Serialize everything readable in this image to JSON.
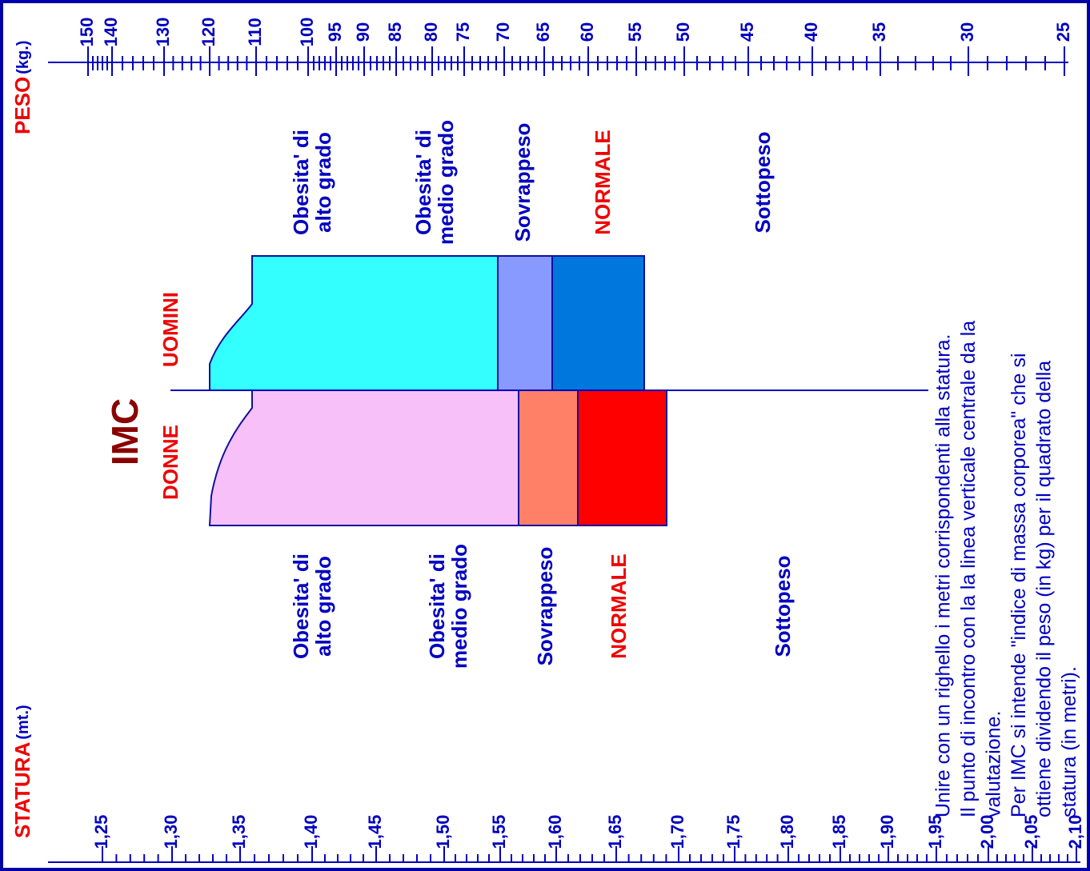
{
  "height_scale": {
    "title": "STATURA",
    "unit": "(mt.)",
    "ticks": [
      "1,25",
      "1,30",
      "1,35",
      "1,40",
      "1,45",
      "1,50",
      "1,55",
      "1,60",
      "1,65",
      "1,70",
      "1,75",
      "1,80",
      "1,85",
      "1,90",
      "1,95",
      "2,00",
      "2,05",
      "2,10"
    ]
  },
  "weight_scale": {
    "title": "PESO",
    "unit": "(kg.)",
    "ticks": [
      "150",
      "140",
      "130",
      "120",
      "110",
      "100",
      "95",
      "90",
      "85",
      "80",
      "75",
      "70",
      "65",
      "60",
      "55",
      "50",
      "45",
      "40",
      "35",
      "30",
      "25"
    ]
  },
  "center": {
    "title": "IMC",
    "men": "UOMINI",
    "women": "DONNE"
  },
  "men_zones": [
    [
      "Obesita' di",
      "alto grado"
    ],
    [
      "Obesita' di",
      "medio grado"
    ],
    [
      "Sovrappeso"
    ],
    [
      "NORMALE"
    ],
    [
      "Sottopeso"
    ]
  ],
  "women_zones": [
    [
      "Obesita' di",
      "alto grado"
    ],
    [
      "Obesita' di",
      "medio grado"
    ],
    [
      "Sovrappeso"
    ],
    [
      "NORMALE"
    ],
    [
      "Sottopeso"
    ]
  ],
  "instructions": [
    "Unire con un righello i metri corrispondenti alla statura.",
    "Il punto di incontro con la la linea verticale centrale da la",
    "valutazione.",
    "Per IMC si intende \"indice di massa corporea\" che si",
    "ottiene dividendo il peso (in kg) per il quadrato della",
    "statura (in metri)."
  ]
}
